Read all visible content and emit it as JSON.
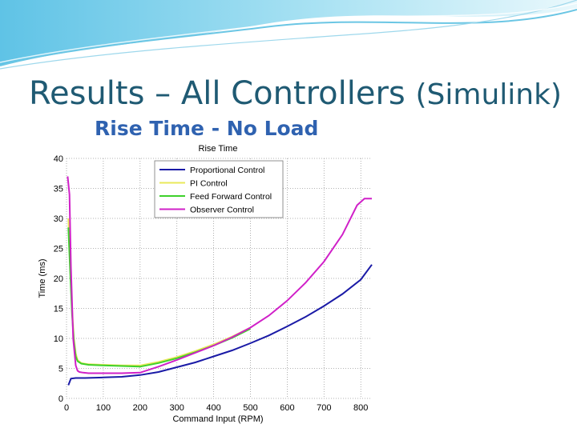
{
  "slide": {
    "title_main": "Results – All Controllers",
    "title_paren": "(Simulink)",
    "subtitle": "Rise Time - No Load"
  },
  "chart_data": {
    "type": "line",
    "title": "Rise Time",
    "xlabel": "Command Input (RPM)",
    "ylabel": "Time (ms)",
    "xlim": [
      0,
      830
    ],
    "ylim": [
      0,
      40
    ],
    "xticks": [
      0,
      100,
      200,
      300,
      400,
      500,
      600,
      700,
      800
    ],
    "yticks": [
      0,
      5,
      10,
      15,
      20,
      25,
      30,
      35,
      40
    ],
    "grid": true,
    "legend_position": "top-center",
    "series": [
      {
        "name": "Proportional Control",
        "color": "#1a1aa6",
        "x": [
          5,
          12,
          25,
          50,
          100,
          150,
          200,
          250,
          300,
          350,
          400,
          450,
          500,
          550,
          600,
          650,
          700,
          750,
          800,
          830
        ],
        "y": [
          2.2,
          3.3,
          3.4,
          3.4,
          3.5,
          3.6,
          3.9,
          4.4,
          5.2,
          6.0,
          7.0,
          8.0,
          9.2,
          10.5,
          12.0,
          13.6,
          15.4,
          17.4,
          19.8,
          22.3
        ]
      },
      {
        "name": "PI Control",
        "color": "#e8e85a",
        "x": [
          5,
          10,
          15,
          20,
          25,
          30,
          40,
          60,
          100,
          150,
          200,
          250,
          300,
          350,
          400,
          450,
          500
        ],
        "y": [
          30.0,
          22.0,
          15.0,
          10.0,
          7.5,
          6.4,
          5.9,
          5.7,
          5.6,
          5.5,
          5.5,
          6.1,
          6.9,
          7.9,
          9.0,
          10.3,
          11.8
        ]
      },
      {
        "name": "Feed Forward Control",
        "color": "#3ed12a",
        "x": [
          5,
          10,
          15,
          20,
          25,
          30,
          40,
          60,
          100,
          150,
          200,
          250,
          300,
          350,
          400,
          450,
          500
        ],
        "y": [
          28.5,
          21.0,
          14.0,
          9.5,
          7.0,
          6.2,
          5.8,
          5.6,
          5.5,
          5.4,
          5.3,
          5.9,
          6.7,
          7.7,
          8.8,
          10.1,
          11.6
        ]
      },
      {
        "name": "Observer Control",
        "color": "#d020c8",
        "x": [
          3,
          8,
          12,
          18,
          25,
          30,
          35,
          45,
          60,
          100,
          150,
          200,
          250,
          300,
          350,
          400,
          450,
          500,
          550,
          600,
          650,
          700,
          750,
          790,
          810,
          830
        ],
        "y": [
          37.0,
          34.0,
          22.0,
          10.0,
          5.5,
          4.6,
          4.4,
          4.3,
          4.2,
          4.2,
          4.2,
          4.3,
          5.3,
          6.4,
          7.6,
          8.8,
          10.2,
          11.8,
          13.8,
          16.3,
          19.3,
          22.8,
          27.3,
          32.2,
          33.3,
          33.3
        ]
      }
    ]
  }
}
